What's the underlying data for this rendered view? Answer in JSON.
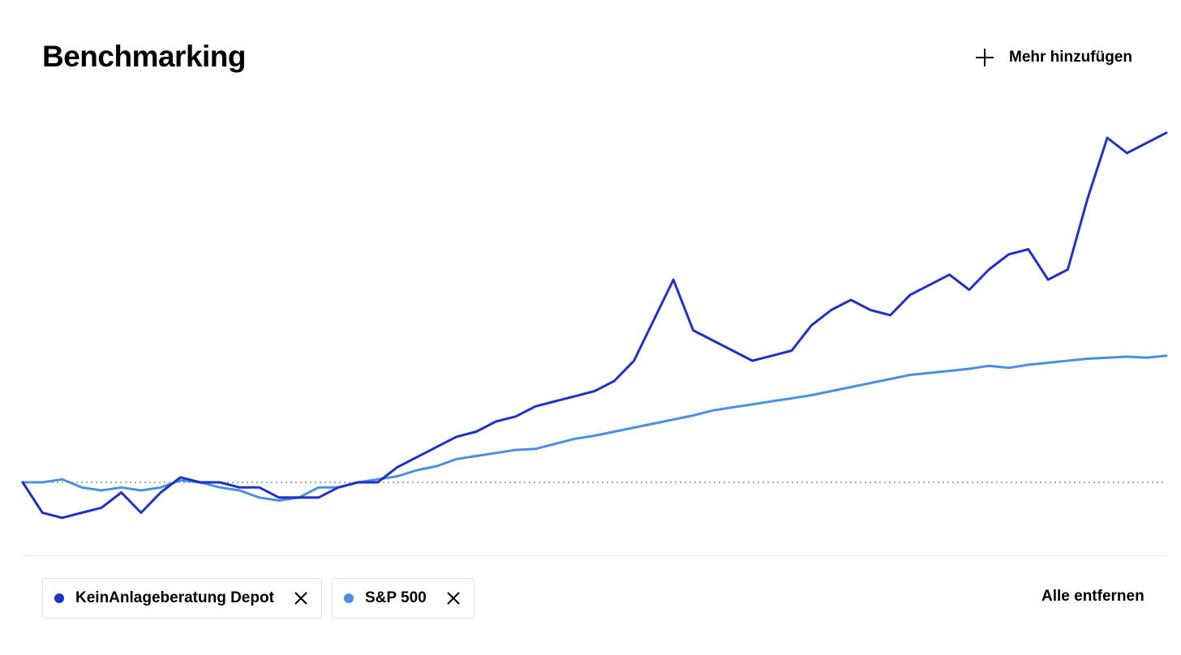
{
  "header": {
    "title": "Benchmarking",
    "add_more_label": "Mehr hinzufügen",
    "add_more_icon": "plus-icon"
  },
  "legend": {
    "items": [
      {
        "label": "KeinAnlageberatung Depot",
        "color": "#1f32c6",
        "remove_icon": "close-icon"
      },
      {
        "label": "S&P 500",
        "color": "#4a90e2",
        "remove_icon": "close-icon"
      }
    ],
    "remove_all_label": "Alle entfernen"
  },
  "chart_data": {
    "type": "line",
    "baseline": 0,
    "baseline_style": "dotted",
    "grid": false,
    "series": [
      {
        "name": "KeinAnlageberatung Depot",
        "color": "#1f32c6",
        "values": [
          0,
          -3,
          -3.5,
          -3,
          -2.5,
          -1,
          -3,
          -1,
          0.5,
          0,
          0,
          -0.5,
          -0.5,
          -1.5,
          -1.5,
          -1.5,
          -0.5,
          0,
          0,
          1.5,
          2.5,
          3.5,
          4.5,
          5,
          6,
          6.5,
          7.5,
          8,
          8.5,
          9,
          10,
          12,
          16,
          20,
          15,
          14,
          13,
          12,
          12.5,
          13,
          15.5,
          17,
          18,
          17,
          16.5,
          18.5,
          19.5,
          20.5,
          19,
          21,
          22.5,
          23,
          20,
          21,
          28,
          34,
          32.5,
          33.5,
          34.5
        ]
      },
      {
        "name": "S&P 500",
        "color": "#4a90e2",
        "values": [
          0,
          0,
          0.3,
          -0.5,
          -0.8,
          -0.5,
          -0.8,
          -0.5,
          0.2,
          0,
          -0.5,
          -0.8,
          -1.5,
          -1.8,
          -1.5,
          -0.5,
          -0.5,
          0,
          0.3,
          0.6,
          1.2,
          1.6,
          2.3,
          2.6,
          2.9,
          3.2,
          3.3,
          3.8,
          4.3,
          4.6,
          5,
          5.4,
          5.8,
          6.2,
          6.6,
          7.1,
          7.4,
          7.7,
          8,
          8.3,
          8.6,
          9,
          9.4,
          9.8,
          10.2,
          10.6,
          10.8,
          11,
          11.2,
          11.5,
          11.3,
          11.6,
          11.8,
          12,
          12.2,
          12.3,
          12.4,
          12.3,
          12.5
        ]
      }
    ],
    "ylim": [
      -6,
      38
    ]
  }
}
